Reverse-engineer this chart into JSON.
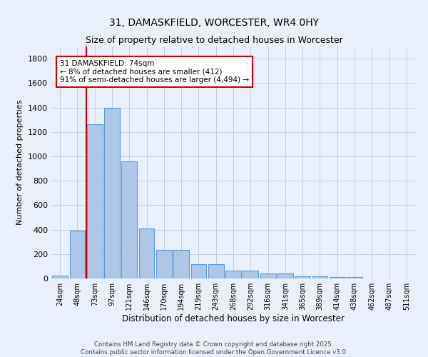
{
  "title": "31, DAMASKFIELD, WORCESTER, WR4 0HY",
  "subtitle": "Size of property relative to detached houses in Worcester",
  "xlabel": "Distribution of detached houses by size in Worcester",
  "ylabel": "Number of detached properties",
  "categories": [
    "24sqm",
    "48sqm",
    "73sqm",
    "97sqm",
    "121sqm",
    "146sqm",
    "170sqm",
    "194sqm",
    "219sqm",
    "243sqm",
    "268sqm",
    "292sqm",
    "316sqm",
    "341sqm",
    "365sqm",
    "389sqm",
    "414sqm",
    "438sqm",
    "462sqm",
    "487sqm",
    "511sqm"
  ],
  "values": [
    25,
    390,
    1265,
    1400,
    960,
    410,
    235,
    235,
    118,
    118,
    62,
    62,
    40,
    40,
    18,
    18,
    10,
    10,
    0,
    0,
    0
  ],
  "bar_color": "#aec6e8",
  "bar_edge_color": "#5b9bd5",
  "vline_color": "#cc0000",
  "annotation_text": "31 DAMASKFIELD: 74sqm\n← 8% of detached houses are smaller (412)\n91% of semi-detached houses are larger (4,494) →",
  "annotation_box_color": "#ffffff",
  "annotation_box_edge": "#cc0000",
  "footer_line1": "Contains HM Land Registry data © Crown copyright and database right 2025.",
  "footer_line2": "Contains public sector information licensed under the Open Government Licence v3.0.",
  "bg_color": "#eaf0fb",
  "plot_bg_color": "#eaf0fb",
  "title_fontsize": 10,
  "ylim": [
    0,
    1900
  ],
  "yticks": [
    0,
    200,
    400,
    600,
    800,
    1000,
    1200,
    1400,
    1600,
    1800
  ]
}
